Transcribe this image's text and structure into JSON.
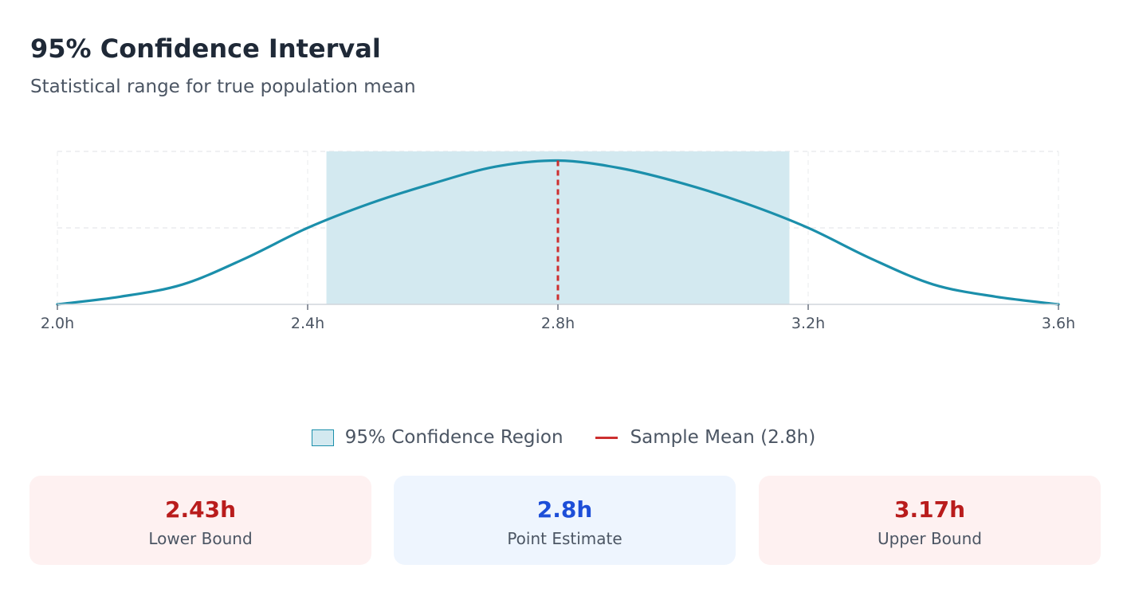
{
  "header": {
    "title": "95% Confidence Interval",
    "subtitle": "Statistical range for true population mean"
  },
  "chart_data": {
    "type": "area",
    "xlim": [
      2.0,
      3.6
    ],
    "ylim": [
      0,
      1
    ],
    "x_ticks": [
      "2.0h",
      "2.4h",
      "2.8h",
      "3.2h",
      "3.6h"
    ],
    "x_tick_values": [
      2.0,
      2.4,
      2.8,
      3.2,
      3.6
    ],
    "grid": true,
    "series": [
      {
        "x": [
          2.0,
          2.1,
          2.2,
          2.3,
          2.4,
          2.5,
          2.6,
          2.7,
          2.8,
          2.9,
          3.0,
          3.1,
          3.2,
          3.3,
          3.4,
          3.5,
          3.6
        ],
        "values": [
          0.0,
          0.05,
          0.13,
          0.3,
          0.5,
          0.66,
          0.79,
          0.9,
          0.94,
          0.89,
          0.79,
          0.66,
          0.5,
          0.3,
          0.13,
          0.05,
          0.0
        ]
      }
    ],
    "interval": {
      "lower": 2.43,
      "upper": 3.17
    },
    "mean": 2.8,
    "legend": [
      {
        "label": "95% Confidence Region",
        "color": "#1b8fab"
      },
      {
        "label": "Sample Mean (2.8h)",
        "color": "#cc2f2f"
      }
    ],
    "legend_position": "bottom",
    "colors": {
      "curve": "#1b8fab",
      "region": "#d3e9f0",
      "mean_line": "#cc2f2f"
    }
  },
  "stats": {
    "lower": {
      "value": "2.43h",
      "label": "Lower Bound"
    },
    "point": {
      "value": "2.8h",
      "label": "Point Estimate"
    },
    "upper": {
      "value": "3.17h",
      "label": "Upper Bound"
    }
  }
}
